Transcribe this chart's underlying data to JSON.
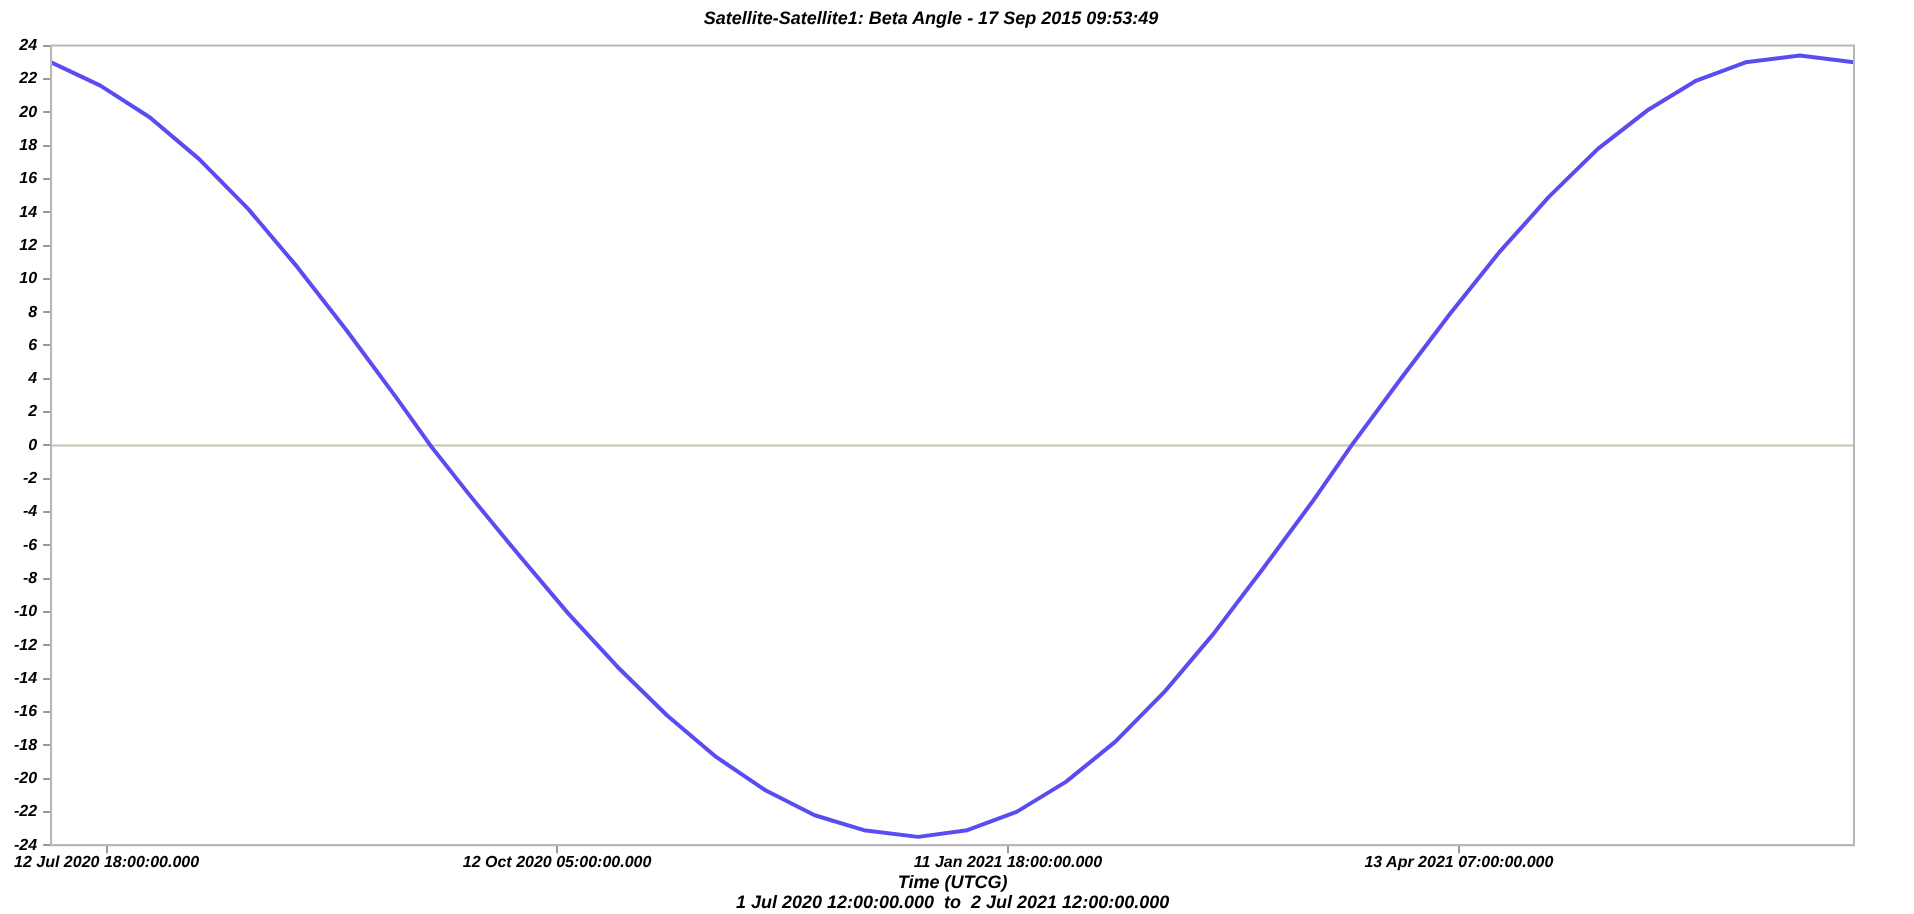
{
  "chart_data": {
    "type": "line",
    "title": "Satellite-Satellite1: Beta Angle - 17 Sep 2015 09:53:49",
    "xlabel": "Time (UTCG)",
    "annotations": [
      "1 Jul 2020 12:00:00.000  to  2 Jul 2021 12:00:00.000"
    ],
    "x": [
      "2020-07-01T12:00",
      "2020-07-11T12:00",
      "2020-07-21T12:00",
      "2020-07-31T12:00",
      "2020-08-10T12:00",
      "2020-08-20T12:00",
      "2020-08-30T12:00",
      "2020-09-09T12:00",
      "2020-09-16T12:00",
      "2020-09-24T12:00",
      "2020-10-04T12:00",
      "2020-10-14T12:00",
      "2020-10-24T12:00",
      "2020-11-03T12:00",
      "2020-11-13T12:00",
      "2020-11-23T12:00",
      "2020-12-03T12:00",
      "2020-12-13T12:00",
      "2020-12-24T12:00",
      "2021-01-03T12:00",
      "2021-01-13T12:00",
      "2021-01-23T12:00",
      "2021-02-02T12:00",
      "2021-02-12T12:00",
      "2021-02-22T12:00",
      "2021-03-04T12:00",
      "2021-03-14T12:00",
      "2021-03-22T12:00",
      "2021-04-01T12:00",
      "2021-04-11T12:00",
      "2021-04-21T12:00",
      "2021-05-01T12:00",
      "2021-05-11T12:00",
      "2021-05-21T12:00",
      "2021-05-31T12:00",
      "2021-06-10T12:00",
      "2021-06-21T12:00",
      "2021-07-02T12:00"
    ],
    "series": [
      {
        "color": "#5a4cf0",
        "values": [
          23.0,
          21.6,
          19.7,
          17.2,
          14.2,
          10.7,
          6.9,
          2.9,
          0,
          -3.0,
          -6.6,
          -10.1,
          -13.3,
          -16.2,
          -18.7,
          -20.7,
          -22.2,
          -23.1,
          -23.5,
          -23.1,
          -22.0,
          -20.2,
          -17.8,
          -14.8,
          -11.3,
          -7.4,
          -3.4,
          0,
          4.0,
          7.9,
          11.6,
          14.9,
          17.8,
          20.1,
          21.9,
          23.0,
          23.4,
          23.0
        ]
      }
    ],
    "xlim": [
      "2020-07-01T12:00",
      "2021-07-02T12:00"
    ],
    "xticks": [
      {
        "value": "2020-07-12T18:00",
        "label": "12 Jul 2020 18:00:00.000"
      },
      {
        "value": "2020-10-12T05:00",
        "label": "12 Oct 2020 05:00:00.000"
      },
      {
        "value": "2021-01-11T18:00",
        "label": "11 Jan 2021 18:00:00.000"
      },
      {
        "value": "2021-04-13T07:00",
        "label": "13 Apr 2021 07:00:00.000"
      }
    ],
    "ylim": [
      -24,
      24
    ],
    "yticks": [
      -24,
      -22,
      -20,
      -18,
      -16,
      -14,
      -12,
      -10,
      -8,
      -6,
      -4,
      -2,
      0,
      2,
      4,
      6,
      8,
      10,
      12,
      14,
      16,
      18,
      20,
      22,
      24
    ],
    "ref_lines": [
      {
        "axis": "y",
        "value": 0,
        "color": "#c8c4b0"
      }
    ],
    "grid": false,
    "legend": false,
    "marker": "none",
    "line_style": "solid"
  }
}
